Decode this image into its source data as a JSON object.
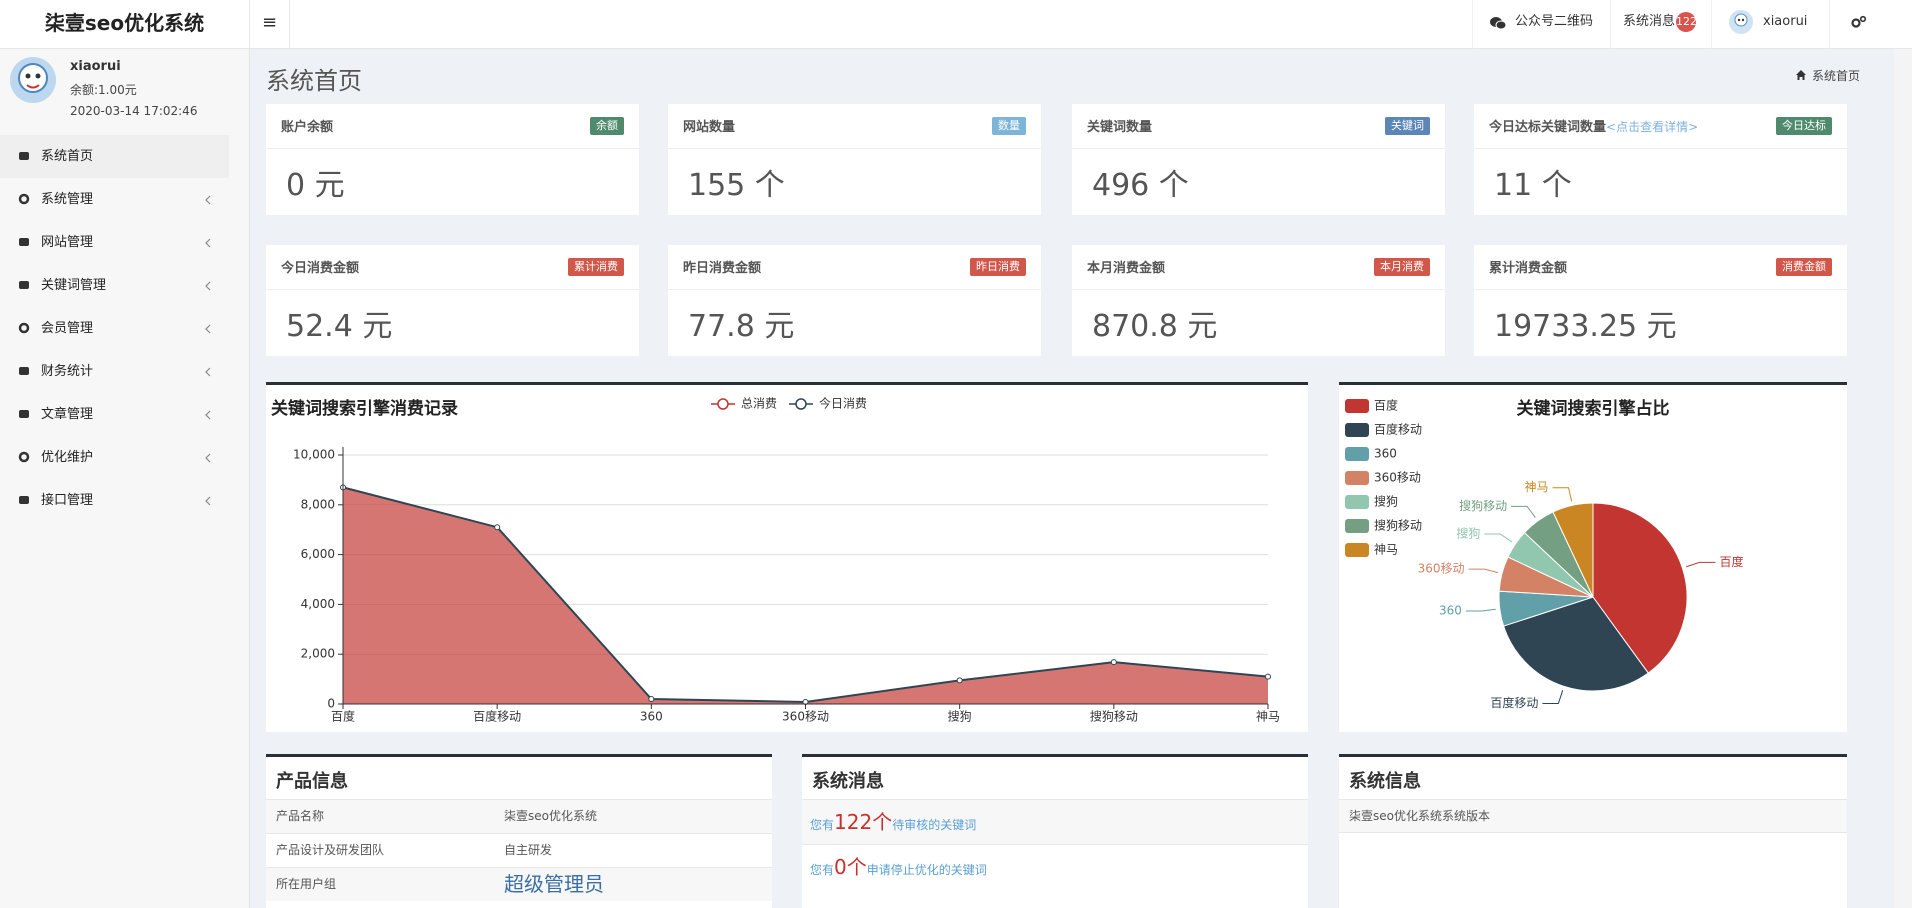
{
  "header": {
    "brand": "柒壹seo优化系统",
    "menu_icon": "≡",
    "qrcode": "公众号二维码",
    "messages": "系统消息",
    "message_count": "122",
    "user": "xiaorui"
  },
  "sidebar": {
    "user": "xiaorui",
    "balance": "余额:1.00元",
    "time": "2020-03-14 17:02:46",
    "menu": [
      "系统首页",
      "系统管理",
      "网站管理",
      "关键词管理",
      "会员管理",
      "财务统计",
      "文章管理",
      "优化维护",
      "接口管理"
    ]
  },
  "page": {
    "title": "系统首页",
    "breadcrumb": "系统首页"
  },
  "cards": [
    {
      "title": "账户余额",
      "badge": "余额",
      "badge_color": "#4f8a6c",
      "value": "0 元"
    },
    {
      "title": "网站数量",
      "badge": "数量",
      "badge_color": "#7db5d8",
      "value": "155 个"
    },
    {
      "title": "关键词数量",
      "badge": "关键词",
      "badge_color": "#5b86b5",
      "value": "496 个"
    },
    {
      "title": "今日达标关键词数量",
      "link": "<点击查看详情>",
      "badge": "今日达标",
      "badge_color": "#4f8a6c",
      "value": "11 个"
    },
    {
      "title": "今日消费金额",
      "badge": "累计消费",
      "badge_color": "#d0574a",
      "value": "52.4 元"
    },
    {
      "title": "昨日消费金额",
      "badge": "昨日消费",
      "badge_color": "#d0574a",
      "value": "77.8 元"
    },
    {
      "title": "本月消费金额",
      "badge": "本月消费",
      "badge_color": "#d0574a",
      "value": "870.8 元"
    },
    {
      "title": "累计消费金额",
      "badge": "消费金额",
      "badge_color": "#d0574a",
      "value": "19733.25 元"
    }
  ],
  "chart_data": [
    {
      "type": "line",
      "title": "关键词搜索引擎消费记录",
      "categories": [
        "百度",
        "百度移动",
        "360",
        "360移动",
        "搜狗",
        "搜狗移动",
        "神马"
      ],
      "series": [
        {
          "name": "总消费",
          "color": "#c23531",
          "values": [
            8700,
            7100,
            200,
            80,
            950,
            1680,
            1100
          ]
        },
        {
          "name": "今日消费",
          "color": "#2f4554",
          "values": [
            8700,
            7100,
            200,
            80,
            950,
            1680,
            1100
          ]
        }
      ],
      "ylim": [
        0,
        10000
      ],
      "yticks": [
        0,
        {
          "value": 2000,
          "label": "2,000"
        },
        {
          "value": 4000,
          "label": "4,000"
        },
        {
          "value": 6000,
          "label": "6,000"
        },
        {
          "value": 8000,
          "label": "8,000"
        },
        {
          "value": 10000,
          "label": "10,000"
        }
      ],
      "grid": true,
      "area": true
    },
    {
      "type": "pie",
      "title": "关键词搜索引擎占比",
      "categories": [
        "百度",
        "百度移动",
        "360",
        "360移动",
        "搜狗",
        "搜狗移动",
        "神马"
      ],
      "values": [
        40,
        30,
        6,
        6,
        5,
        6,
        7
      ],
      "colors": [
        "#c23531",
        "#2f4554",
        "#61a0a8",
        "#d48265",
        "#91c7ae",
        "#749f83",
        "#ca8622"
      ],
      "legend": "left"
    }
  ],
  "product": {
    "title": "产品信息",
    "rows": [
      [
        "产品名称",
        "柒壹seo优化系统"
      ],
      [
        "产品设计及研发团队",
        "自主研发"
      ],
      [
        "所在用户组",
        "超级管理员"
      ]
    ]
  },
  "messages": {
    "title": "系统消息",
    "rows": [
      {
        "prefix": "您有",
        "count": "122个",
        "suffix": "待审核的关键词"
      },
      {
        "prefix": "您有",
        "count": "0个",
        "suffix": "申请停止优化的关键词"
      }
    ]
  },
  "sysinfo": {
    "title": "系统信息",
    "rows": [
      "柒壹seo优化系统系统版本"
    ]
  }
}
